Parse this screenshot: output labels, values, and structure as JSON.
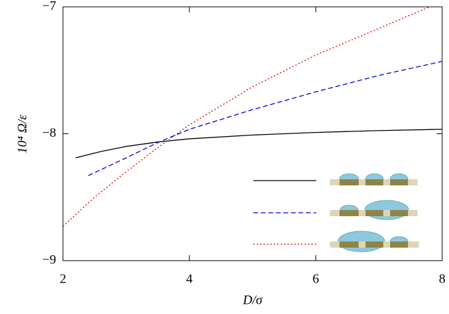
{
  "chart_data": {
    "type": "line",
    "xlabel": "D/σ",
    "ylabel": "10⁴ Ω/ε",
    "xlim": [
      2,
      8
    ],
    "xticks": [
      2,
      4,
      6,
      8
    ],
    "ylim": [
      -9,
      -7
    ],
    "yticks": [
      {
        "value": -9,
        "label": "−9"
      },
      {
        "value": -8,
        "label": "−8"
      },
      {
        "value": -7,
        "label": "−7"
      }
    ],
    "series": [
      {
        "color": "#000000",
        "dash": "solid",
        "x": [
          2.2,
          2.6,
          3,
          3.5,
          4,
          5,
          6,
          7,
          8
        ],
        "values": [
          -8.19,
          -8.14,
          -8.1,
          -8.065,
          -8.04,
          -8.01,
          -7.99,
          -7.975,
          -7.965
        ]
      },
      {
        "color": "#0000dd",
        "dash": "dashed",
        "x": [
          2.4,
          3,
          3.5,
          4,
          5,
          6,
          7,
          8
        ],
        "values": [
          -8.33,
          -8.19,
          -8.07,
          -7.965,
          -7.81,
          -7.67,
          -7.54,
          -7.43
        ]
      },
      {
        "color": "#dd0000",
        "dash": "dotted",
        "x": [
          2,
          2.5,
          3,
          3.5,
          4,
          5,
          6,
          7,
          7.8
        ],
        "values": [
          -8.73,
          -8.5,
          -8.3,
          -8.11,
          -7.93,
          -7.63,
          -7.38,
          -7.17,
          -7.0
        ]
      }
    ]
  }
}
